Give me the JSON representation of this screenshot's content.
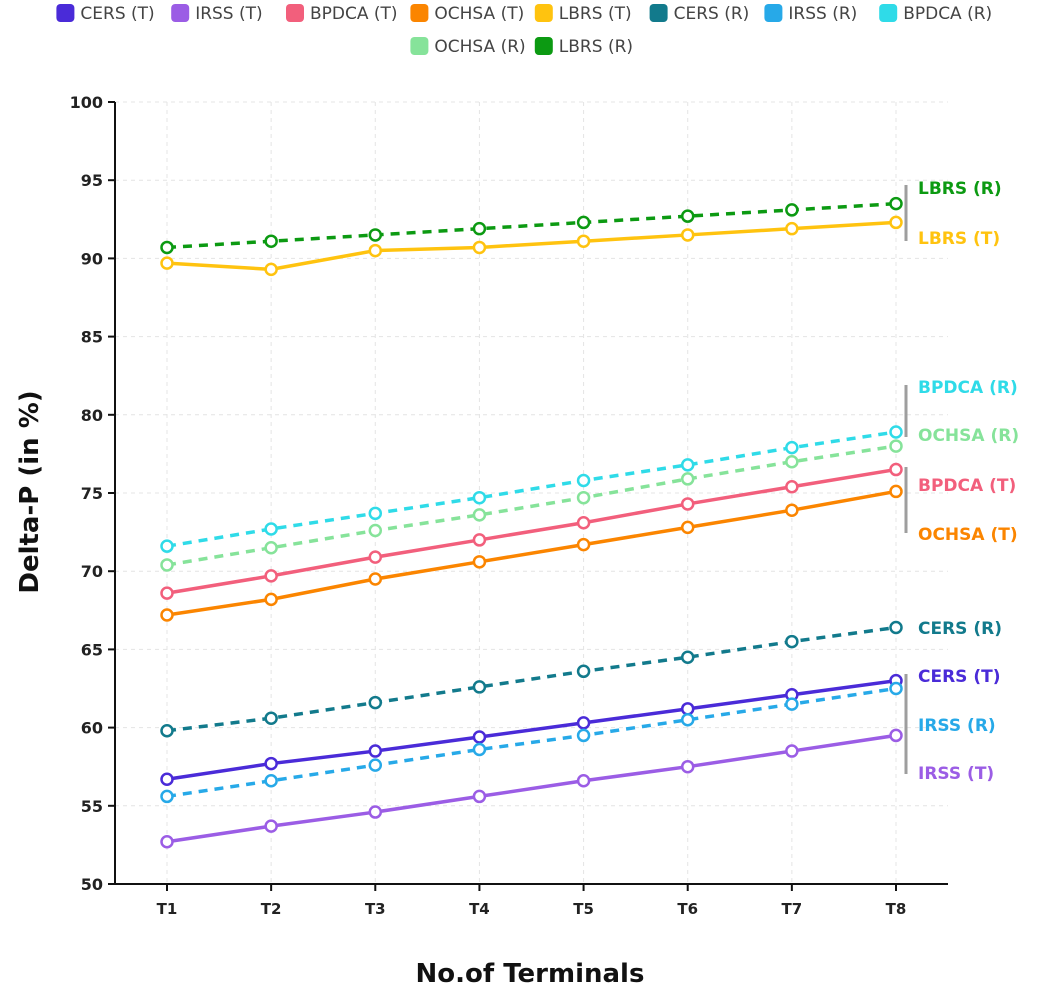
{
  "chart_data": {
    "type": "line",
    "title": "",
    "xlabel": "No.of Terminals",
    "ylabel": "Delta-P (in %)",
    "ylim": [
      50,
      100
    ],
    "yticks": [
      50,
      55,
      60,
      65,
      70,
      75,
      80,
      85,
      90,
      95,
      100
    ],
    "grid": true,
    "legend_position": "top",
    "categories": [
      "T1",
      "T2",
      "T3",
      "T4",
      "T5",
      "T6",
      "T7",
      "T8"
    ],
    "series": [
      {
        "name": "CERS (T)",
        "color": "#4a2bd8",
        "dashed": false,
        "values": [
          56.7,
          57.7,
          58.5,
          59.4,
          60.3,
          61.2,
          62.1,
          63.0
        ]
      },
      {
        "name": "IRSS (T)",
        "color": "#9b5de5",
        "dashed": false,
        "values": [
          52.7,
          53.7,
          54.6,
          55.6,
          56.6,
          57.5,
          58.5,
          59.5
        ]
      },
      {
        "name": "BPDCA (T)",
        "color": "#f25f7c",
        "dashed": false,
        "values": [
          68.6,
          69.7,
          70.9,
          72.0,
          73.1,
          74.3,
          75.4,
          76.5
        ]
      },
      {
        "name": "OCHSA (T)",
        "color": "#fb8500",
        "dashed": false,
        "values": [
          67.2,
          68.2,
          69.5,
          70.6,
          71.7,
          72.8,
          73.9,
          75.1
        ]
      },
      {
        "name": "LBRS (T)",
        "color": "#ffc30f",
        "dashed": false,
        "values": [
          89.7,
          89.3,
          90.5,
          90.7,
          91.1,
          91.5,
          91.9,
          92.3
        ]
      },
      {
        "name": "CERS (R)",
        "color": "#127a8c",
        "dashed": true,
        "values": [
          59.8,
          60.6,
          61.6,
          62.6,
          63.6,
          64.5,
          65.5,
          66.4
        ]
      },
      {
        "name": "IRSS (R)",
        "color": "#27a9e8",
        "dashed": true,
        "values": [
          55.6,
          56.6,
          57.6,
          58.6,
          59.5,
          60.5,
          61.5,
          62.5
        ]
      },
      {
        "name": "BPDCA (R)",
        "color": "#2fdbe8",
        "dashed": true,
        "values": [
          71.6,
          72.7,
          73.7,
          74.7,
          75.8,
          76.8,
          77.9,
          78.9
        ]
      },
      {
        "name": "OCHSA (R)",
        "color": "#86e39a",
        "dashed": true,
        "values": [
          70.4,
          71.5,
          72.6,
          73.6,
          74.7,
          75.9,
          77.0,
          78.0
        ]
      },
      {
        "name": "LBRS (R)",
        "color": "#0c9a12",
        "dashed": true,
        "values": [
          90.7,
          91.1,
          91.5,
          91.9,
          92.3,
          92.7,
          93.1,
          93.5
        ]
      }
    ],
    "end_labels": [
      {
        "text": "LBRS (R)",
        "series": "LBRS (R)"
      },
      {
        "text": "LBRS (T)",
        "series": "LBRS (T)"
      },
      {
        "text": "BPDCA (R)",
        "series": "BPDCA (R)"
      },
      {
        "text": "OCHSA (R)",
        "series": "OCHSA (R)"
      },
      {
        "text": "BPDCA (T)",
        "series": "BPDCA (T)"
      },
      {
        "text": "OCHSA (T)",
        "series": "OCHSA (T)"
      },
      {
        "text": "CERS (R)",
        "series": "CERS (R)"
      },
      {
        "text": "CERS (T)",
        "series": "CERS (T)"
      },
      {
        "text": "IRSS (R)",
        "series": "IRSS (R)"
      },
      {
        "text": "IRSS (T)",
        "series": "IRSS (T)"
      }
    ]
  }
}
